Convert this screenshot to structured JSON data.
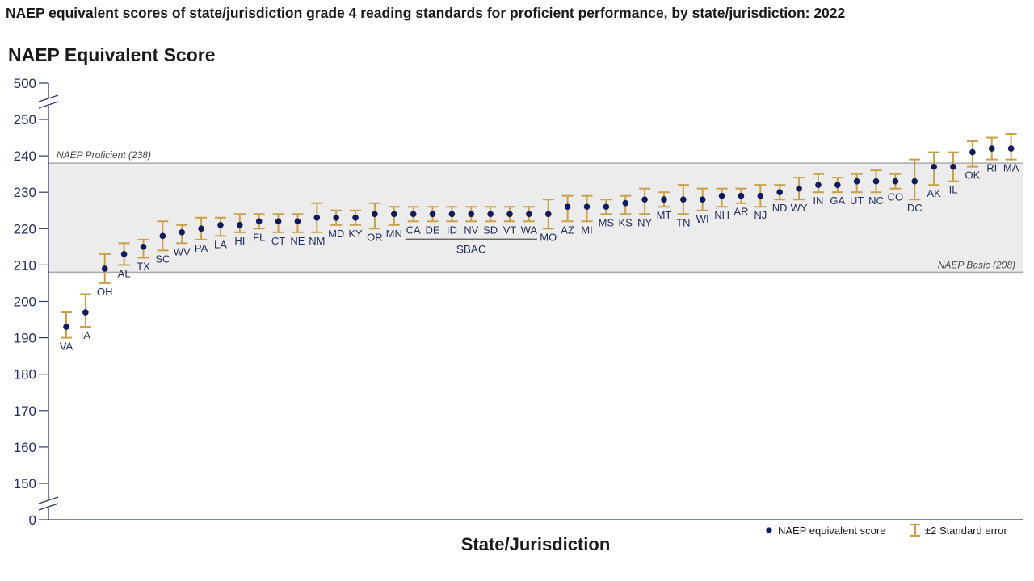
{
  "title": "NAEP equivalent scores of state/jurisdiction grade 4 reading standards for proficient performance, by state/jurisdiction: 2022",
  "chart_data": {
    "type": "scatter",
    "title": "NAEP equivalent scores of state/jurisdiction grade 4 reading standards for proficient performance, by state/jurisdiction: 2022",
    "ylabel": "NAEP Equivalent Score",
    "xlabel": "State/Jurisdiction",
    "ylim": [
      145,
      255
    ],
    "axis_breaks": {
      "top_value": 500,
      "bottom_value": 0
    },
    "yticks": [
      150,
      160,
      170,
      180,
      190,
      200,
      210,
      220,
      230,
      240,
      250
    ],
    "ytick_labels": [
      "0",
      "150",
      "160",
      "170",
      "180",
      "190",
      "200",
      "210",
      "220",
      "230",
      "240",
      "250",
      "500"
    ],
    "grid": false,
    "legend_position": "bottom-right",
    "legend": {
      "point": "NAEP equivalent score",
      "errorbar": "±2 Standard error"
    },
    "reference_lines": [
      {
        "label": "NAEP Proficient (238)",
        "value": 238
      },
      {
        "label": "NAEP Basic (208)",
        "value": 208
      }
    ],
    "group_label": {
      "text": "SBAC",
      "members": [
        "CA",
        "DE",
        "ID",
        "NV",
        "SD",
        "VT",
        "WA"
      ]
    },
    "colors": {
      "point": "#101b5e",
      "errorbar": "#c8a04a",
      "band": "#ececec",
      "refline": "#aaaaaa",
      "axis": "#2b3a67"
    },
    "states": [
      "VA",
      "IA",
      "OH",
      "AL",
      "TX",
      "SC",
      "WV",
      "PA",
      "LA",
      "HI",
      "FL",
      "CT",
      "NE",
      "NM",
      "MD",
      "KY",
      "OR",
      "MN",
      "CA",
      "DE",
      "ID",
      "NV",
      "SD",
      "VT",
      "WA",
      "MO",
      "AZ",
      "MI",
      "MS",
      "KS",
      "NY",
      "MT",
      "TN",
      "WI",
      "NH",
      "AR",
      "NJ",
      "ND",
      "WY",
      "IN",
      "GA",
      "UT",
      "NC",
      "CO",
      "DC",
      "AK",
      "IL",
      "OK",
      "RI",
      "MA"
    ],
    "values": [
      193,
      197,
      209,
      213,
      215,
      218,
      219,
      220,
      221,
      221,
      222,
      222,
      222,
      223,
      223,
      223,
      224,
      224,
      224,
      224,
      224,
      224,
      224,
      224,
      224,
      224,
      226,
      226,
      226,
      227,
      228,
      228,
      228,
      228,
      229,
      229,
      229,
      230,
      231,
      232,
      232,
      233,
      233,
      233,
      233,
      237,
      237,
      241,
      242,
      242
    ],
    "error_low": [
      190,
      193,
      205,
      210,
      212,
      214,
      216,
      217,
      218,
      219,
      220,
      219,
      219,
      219,
      221,
      221,
      220,
      221,
      222,
      222,
      222,
      222,
      222,
      222,
      222,
      220,
      222,
      222,
      224,
      224,
      224,
      226,
      224,
      225,
      226,
      227,
      226,
      228,
      228,
      230,
      230,
      230,
      230,
      231,
      228,
      232,
      233,
      237,
      239,
      239
    ],
    "error_high": [
      197,
      202,
      213,
      216,
      217,
      222,
      221,
      223,
      223,
      224,
      224,
      224,
      224,
      227,
      225,
      225,
      227,
      226,
      226,
      226,
      226,
      226,
      226,
      226,
      226,
      228,
      229,
      229,
      228,
      229,
      231,
      230,
      232,
      231,
      231,
      231,
      232,
      232,
      234,
      235,
      234,
      235,
      236,
      235,
      239,
      241,
      241,
      244,
      245,
      246
    ]
  }
}
